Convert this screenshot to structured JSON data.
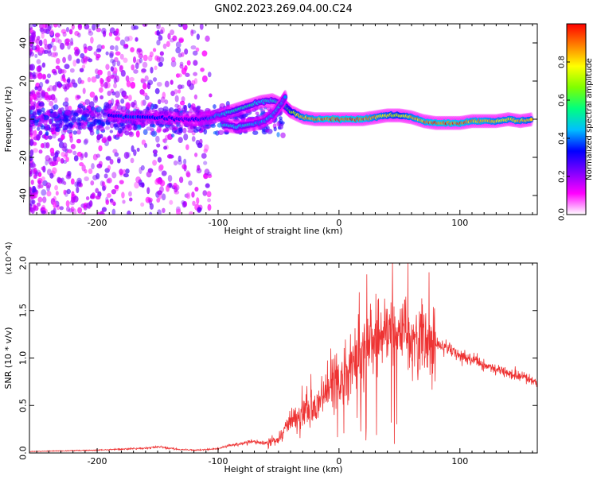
{
  "title": "GN02.2023.269.04.00.C24",
  "chart_data": [
    {
      "type": "heatmap",
      "xlabel": "Height of straight line (km)",
      "ylabel": "Frequency (Hz)",
      "xlim": [
        -256,
        164
      ],
      "ylim": [
        -50,
        50
      ],
      "xticks": [
        -200,
        -100,
        0,
        100
      ],
      "yticks": [
        -40,
        -20,
        0,
        20,
        40
      ],
      "grid": false,
      "colorbar": {
        "label": "Normalized spectral amplitude",
        "range": [
          0,
          1
        ],
        "ticks": [
          "0.0",
          "0.2",
          "0.4",
          "0.6",
          "0.8"
        ],
        "colormap": [
          "#ffffff",
          "#ff00ff",
          "#7f00ff",
          "#0000ff",
          "#00bfff",
          "#00ff7f",
          "#7fff00",
          "#ffff00",
          "#ff7f00",
          "#ff0000"
        ]
      },
      "ridge": [
        {
          "x": -190,
          "y": 2,
          "amp": 0.35
        },
        {
          "x": -170,
          "y": 1,
          "amp": 0.4
        },
        {
          "x": -150,
          "y": 1,
          "amp": 0.35
        },
        {
          "x": -130,
          "y": 0,
          "amp": 0.3
        },
        {
          "x": -115,
          "y": 0,
          "amp": 0.35
        },
        {
          "x": -105,
          "y": 1,
          "amp": 0.4
        },
        {
          "x": -95,
          "y": 3,
          "amp": 0.5
        },
        {
          "x": -85,
          "y": 5,
          "amp": 0.55
        },
        {
          "x": -75,
          "y": 7,
          "amp": 0.55
        },
        {
          "x": -65,
          "y": 9,
          "amp": 0.5
        },
        {
          "x": -55,
          "y": 10,
          "amp": 0.5
        },
        {
          "x": -45,
          "y": 7,
          "amp": 0.55
        },
        {
          "x": -40,
          "y": 4,
          "amp": 0.7
        },
        {
          "x": -30,
          "y": 1,
          "amp": 0.9
        },
        {
          "x": -20,
          "y": 0,
          "amp": 0.95
        },
        {
          "x": -10,
          "y": 0,
          "amp": 1.0
        },
        {
          "x": 0,
          "y": 0,
          "amp": 1.0
        },
        {
          "x": 10,
          "y": 0,
          "amp": 1.0
        },
        {
          "x": 20,
          "y": 0,
          "amp": 1.0
        },
        {
          "x": 30,
          "y": 1,
          "amp": 0.9
        },
        {
          "x": 40,
          "y": 2,
          "amp": 0.85
        },
        {
          "x": 50,
          "y": 2,
          "amp": 0.8
        },
        {
          "x": 60,
          "y": 1,
          "amp": 0.9
        },
        {
          "x": 70,
          "y": -1,
          "amp": 0.95
        },
        {
          "x": 80,
          "y": -2,
          "amp": 1.0
        },
        {
          "x": 90,
          "y": -2,
          "amp": 1.0
        },
        {
          "x": 100,
          "y": -2,
          "amp": 1.0
        },
        {
          "x": 110,
          "y": -1,
          "amp": 0.95
        },
        {
          "x": 120,
          "y": -1,
          "amp": 0.95
        },
        {
          "x": 130,
          "y": -1,
          "amp": 0.9
        },
        {
          "x": 140,
          "y": 0,
          "amp": 0.9
        },
        {
          "x": 150,
          "y": -1,
          "amp": 0.9
        },
        {
          "x": 160,
          "y": 0,
          "amp": 0.85
        }
      ],
      "branch": [
        {
          "x": -95,
          "y": -3,
          "amp": 0.5
        },
        {
          "x": -85,
          "y": -4,
          "amp": 0.5
        },
        {
          "x": -75,
          "y": -3,
          "amp": 0.5
        },
        {
          "x": -65,
          "y": -2,
          "amp": 0.45
        },
        {
          "x": -55,
          "y": 2,
          "amp": 0.45
        },
        {
          "x": -48,
          "y": 8,
          "amp": 0.5
        },
        {
          "x": -44,
          "y": 12,
          "amp": 0.45
        }
      ]
    },
    {
      "type": "line",
      "xlabel": "Height of straight line (km)",
      "ylabel": "SNR (10 * v/v)",
      "y_multiplier": "(x10^4)",
      "xlim": [
        -256,
        164
      ],
      "ylim": [
        0,
        20000
      ],
      "xticks": [
        -200,
        -100,
        0,
        100
      ],
      "yticks": [
        "0.0",
        "0.5",
        "1.0",
        "1.5",
        "2.0"
      ],
      "grid": false,
      "color": "#ee3333",
      "series": [
        {
          "x": [
            -256,
            -240,
            -220,
            -200,
            -180,
            -160,
            -150,
            -140,
            -130,
            -120,
            -110,
            -100,
            -90,
            -80,
            -70,
            -60,
            -50,
            -45,
            -40,
            -35,
            -30,
            -25,
            -20,
            -15,
            -10,
            -5,
            0,
            5,
            10,
            15,
            20,
            25,
            30,
            35,
            40,
            45,
            50,
            55,
            60,
            65,
            70,
            75,
            80,
            85,
            90,
            95,
            100,
            105,
            110,
            115,
            120,
            125,
            130,
            135,
            140,
            145,
            150,
            155,
            160,
            164
          ],
          "values": [
            150,
            200,
            250,
            300,
            400,
            500,
            650,
            500,
            350,
            300,
            350,
            450,
            800,
            1000,
            1200,
            1000,
            1500,
            2300,
            3400,
            3800,
            4500,
            5300,
            4600,
            5500,
            6500,
            7500,
            8200,
            8700,
            9600,
            10100,
            10700,
            11400,
            11800,
            12200,
            12700,
            13000,
            12200,
            12800,
            12300,
            12000,
            11800,
            11600,
            11400,
            11300,
            11000,
            10600,
            10300,
            10000,
            9800,
            9600,
            9300,
            9100,
            8900,
            8700,
            8500,
            8300,
            8100,
            7900,
            7700,
            7500
          ]
        }
      ]
    }
  ]
}
